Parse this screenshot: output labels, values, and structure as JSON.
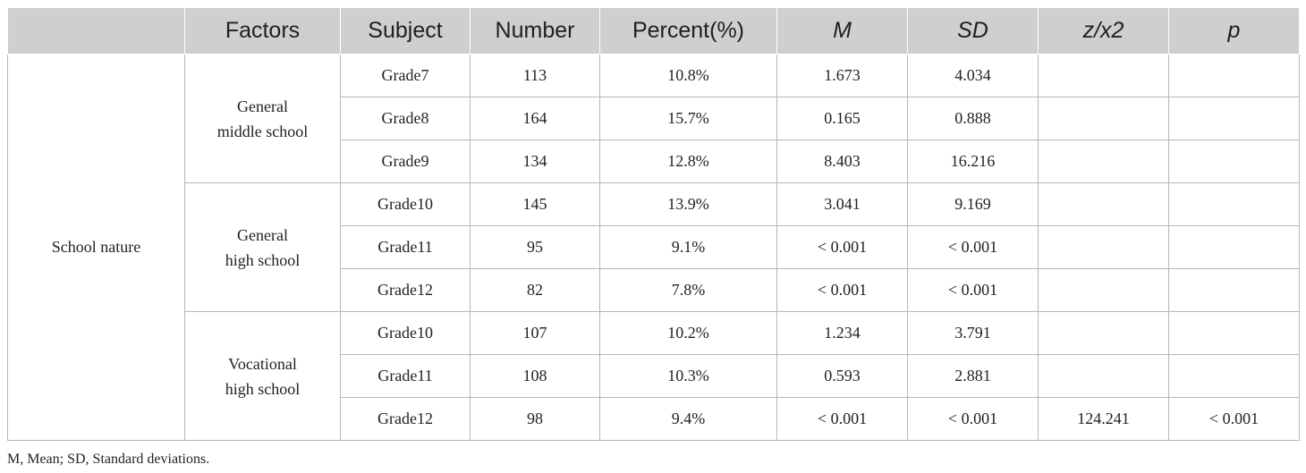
{
  "table": {
    "headers": [
      "Factors",
      "Subject",
      "Number",
      "Percent(%)",
      "M",
      "SD",
      "z/x2",
      "p"
    ],
    "factor": "School nature",
    "groups": [
      {
        "name_line1": "General",
        "name_line2": "middle school",
        "rows": [
          {
            "grade": "Grade7",
            "number": "113",
            "percent": "10.8%",
            "m": "1.673",
            "sd": "4.034",
            "z": "",
            "p": ""
          },
          {
            "grade": "Grade8",
            "number": "164",
            "percent": "15.7%",
            "m": "0.165",
            "sd": "0.888",
            "z": "",
            "p": ""
          },
          {
            "grade": "Grade9",
            "number": "134",
            "percent": "12.8%",
            "m": "8.403",
            "sd": "16.216",
            "z": "",
            "p": ""
          }
        ]
      },
      {
        "name_line1": "General",
        "name_line2": "high school",
        "rows": [
          {
            "grade": "Grade10",
            "number": "145",
            "percent": "13.9%",
            "m": "3.041",
            "sd": "9.169",
            "z": "",
            "p": ""
          },
          {
            "grade": "Grade11",
            "number": "95",
            "percent": "9.1%",
            "m": "< 0.001",
            "sd": "< 0.001",
            "z": "",
            "p": ""
          },
          {
            "grade": "Grade12",
            "number": "82",
            "percent": "7.8%",
            "m": "< 0.001",
            "sd": "< 0.001",
            "z": "",
            "p": ""
          }
        ]
      },
      {
        "name_line1": "Vocational",
        "name_line2": "high school",
        "rows": [
          {
            "grade": "Grade10",
            "number": "107",
            "percent": "10.2%",
            "m": "1.234",
            "sd": "3.791",
            "z": "",
            "p": ""
          },
          {
            "grade": "Grade11",
            "number": "108",
            "percent": "10.3%",
            "m": "0.593",
            "sd": "2.881",
            "z": "",
            "p": ""
          },
          {
            "grade": "Grade12",
            "number": "98",
            "percent": "9.4%",
            "m": "< 0.001",
            "sd": "< 0.001",
            "z": "124.241",
            "p": "< 0.001"
          }
        ]
      }
    ]
  },
  "footnote": "M, Mean; SD, Standard deviations."
}
